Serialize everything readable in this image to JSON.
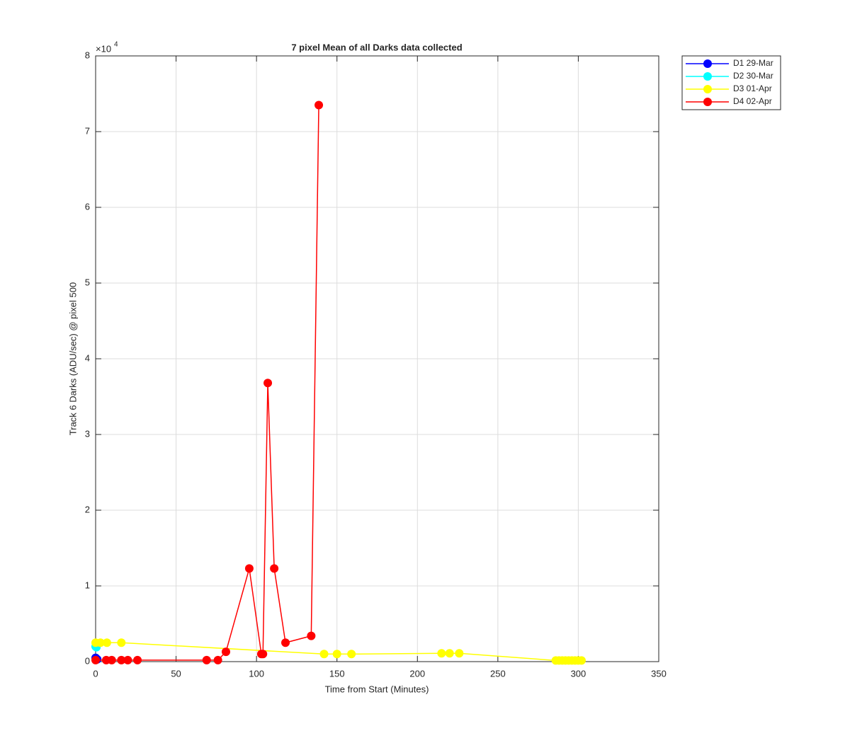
{
  "chart_data": {
    "type": "line",
    "title": "7 pixel Mean of all Darks data collected",
    "x_label": "Time from Start (Minutes)",
    "y_label": "Track 6 Darks (ADU/sec) @ pixel 500",
    "y_multiplier": {
      "base": "×10",
      "exponent": "4"
    },
    "xlim": [
      0,
      350
    ],
    "xticks": [
      0,
      50,
      100,
      150,
      200,
      250,
      300,
      350
    ],
    "ylim": [
      0,
      80000
    ],
    "yticks": [
      {
        "value": 0,
        "label": "0"
      },
      {
        "value": 10000,
        "label": "1"
      },
      {
        "value": 20000,
        "label": "2"
      },
      {
        "value": 30000,
        "label": "3"
      },
      {
        "value": 40000,
        "label": "4"
      },
      {
        "value": 50000,
        "label": "5"
      },
      {
        "value": 60000,
        "label": "6"
      },
      {
        "value": 70000,
        "label": "7"
      },
      {
        "value": 80000,
        "label": "8"
      }
    ],
    "grid": true,
    "legend": "outside-top-right",
    "series": [
      {
        "name": "D1 29-Mar",
        "color": "#0000ff",
        "x": [
          0,
          1
        ],
        "values": [
          500,
          300
        ]
      },
      {
        "name": "D2 30-Mar",
        "color": "#00ffff",
        "x": [
          0,
          0.5
        ],
        "values": [
          2000,
          1900
        ]
      },
      {
        "name": "D3 01-Apr",
        "color": "#ffff00",
        "x": [
          0,
          3,
          7,
          16,
          142,
          150,
          159,
          215,
          220,
          226,
          286,
          288,
          290,
          292,
          294,
          296,
          298,
          300,
          302
        ],
        "values": [
          2500,
          2500,
          2500,
          2500,
          1000,
          1000,
          1000,
          1100,
          1100,
          1100,
          150,
          150,
          150,
          150,
          150,
          150,
          150,
          150,
          150
        ]
      },
      {
        "name": "D4 02-Apr",
        "color": "#ff0000",
        "x": [
          0,
          6.6,
          10,
          16,
          20,
          26,
          69,
          76,
          81,
          95.5,
          103,
          104,
          107,
          111,
          118,
          134,
          138.7
        ],
        "values": [
          200,
          200,
          200,
          200,
          200,
          200,
          200,
          200,
          1300,
          12300,
          1000,
          1000,
          36800,
          12300,
          2500,
          3400,
          73500
        ]
      }
    ]
  }
}
